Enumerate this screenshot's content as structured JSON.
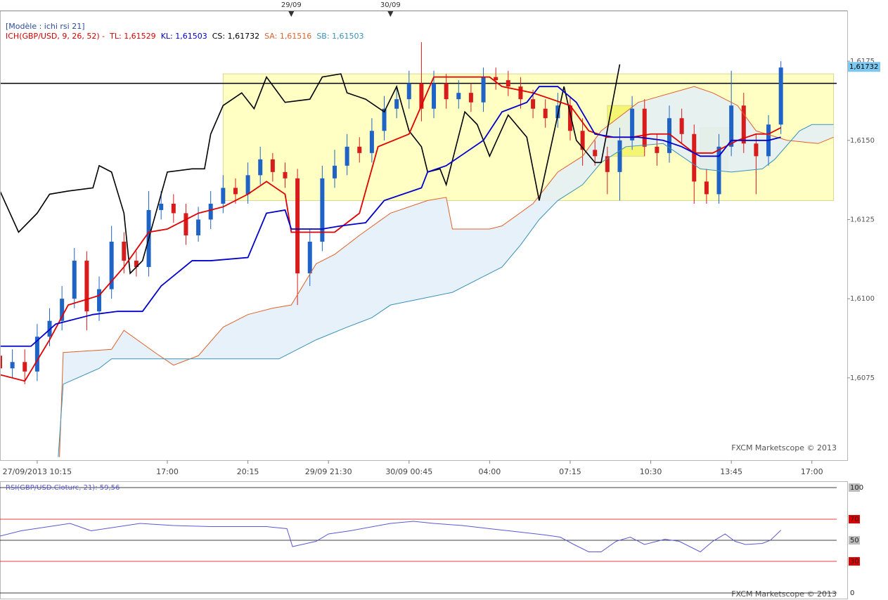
{
  "chart_data": {
    "type": "candlestick",
    "template": "[Modèle : ichi rsi 21]",
    "indicator": "ICH(GBP/USD, 9, 26, 52) -",
    "indicator_color": "#d40000",
    "watermark": "FXCM Marketscope © 2013",
    "xlim": [
      0,
      135
    ],
    "ylim": [
      1.6049,
      1.6191
    ],
    "yticks": [
      {
        "value": 1.6075,
        "label": "1,6075"
      },
      {
        "value": 1.61,
        "label": "1,6100"
      },
      {
        "value": 1.6125,
        "label": "1,6125"
      },
      {
        "value": 1.615,
        "label": "1,6150"
      },
      {
        "value": 1.6175,
        "label": "1,6175"
      }
    ],
    "xticks": [
      {
        "value": 6,
        "label": "27/09/2013 10:15"
      },
      {
        "value": 27,
        "label": "17:00"
      },
      {
        "value": 40,
        "label": "20:15"
      },
      {
        "value": 53,
        "label": "29/09 21:30"
      },
      {
        "value": 66,
        "label": "30/09 00:45"
      },
      {
        "value": 79,
        "label": "04:00"
      },
      {
        "value": 92,
        "label": "07:15"
      },
      {
        "value": 105,
        "label": "10:30"
      },
      {
        "value": 118,
        "label": "13:45"
      },
      {
        "value": 131,
        "label": "17:00"
      }
    ],
    "date_markers": [
      {
        "value": 47,
        "label": "29/09"
      },
      {
        "value": 63,
        "label": "30/09"
      }
    ],
    "last_price": {
      "value": 1.61732,
      "label": "1,61732",
      "color": "#7ec8f0"
    },
    "up_color": "#1f63c6",
    "down_color": "#d81c1c",
    "candles": {
      "x": [
        0,
        2,
        4,
        6,
        8,
        10,
        12,
        14,
        16,
        18,
        20,
        22,
        24,
        26,
        28,
        30,
        32,
        34,
        36,
        38,
        40,
        42,
        44,
        46,
        48,
        50,
        52,
        54,
        56,
        58,
        60,
        62,
        64,
        66,
        68,
        70,
        72,
        74,
        76,
        78,
        80,
        82,
        84,
        86,
        88,
        90,
        92,
        94,
        96,
        98,
        100,
        102,
        104,
        106,
        108,
        110,
        112,
        114,
        116,
        118,
        120,
        122,
        124,
        126
      ],
      "open": [
        1.6082,
        1.6078,
        1.608,
        1.6077,
        1.6088,
        1.6093,
        1.61,
        1.6112,
        1.6096,
        1.6103,
        1.6118,
        1.6112,
        1.611,
        1.6128,
        1.613,
        1.6127,
        1.612,
        1.6125,
        1.613,
        1.6135,
        1.6133,
        1.6139,
        1.6144,
        1.614,
        1.6138,
        1.6108,
        1.6118,
        1.6138,
        1.6142,
        1.6148,
        1.6146,
        1.6153,
        1.616,
        1.6163,
        1.6168,
        1.616,
        1.6168,
        1.6163,
        1.6165,
        1.6162,
        1.617,
        1.6169,
        1.6167,
        1.6163,
        1.616,
        1.6157,
        1.6161,
        1.6153,
        1.6147,
        1.6145,
        1.614,
        1.615,
        1.616,
        1.6148,
        1.6146,
        1.6157,
        1.6152,
        1.6137,
        1.6133,
        1.6148,
        1.6161,
        1.6149,
        1.6145,
        1.6155
      ],
      "high": [
        1.6086,
        1.6084,
        1.6084,
        1.6092,
        1.6097,
        1.6104,
        1.6116,
        1.6115,
        1.6107,
        1.6123,
        1.6121,
        1.6115,
        1.6134,
        1.6134,
        1.6133,
        1.613,
        1.6129,
        1.6134,
        1.6139,
        1.6138,
        1.6143,
        1.6148,
        1.6146,
        1.6143,
        1.6141,
        1.6122,
        1.6142,
        1.6147,
        1.6152,
        1.6151,
        1.6157,
        1.6164,
        1.6167,
        1.6172,
        1.6181,
        1.6172,
        1.6171,
        1.6169,
        1.6168,
        1.6173,
        1.6173,
        1.6172,
        1.617,
        1.6166,
        1.6163,
        1.6165,
        1.6164,
        1.6157,
        1.615,
        1.6148,
        1.6154,
        1.6164,
        1.6163,
        1.6152,
        1.6161,
        1.616,
        1.6155,
        1.6141,
        1.6152,
        1.6172,
        1.6165,
        1.6152,
        1.6158,
        1.6175
      ],
      "low": [
        1.6073,
        1.6075,
        1.6073,
        1.6074,
        1.6085,
        1.609,
        1.6097,
        1.609,
        1.6093,
        1.61,
        1.6108,
        1.6107,
        1.6107,
        1.6125,
        1.6124,
        1.6117,
        1.6118,
        1.6122,
        1.6127,
        1.613,
        1.613,
        1.6136,
        1.6137,
        1.6135,
        1.6098,
        1.6104,
        1.6115,
        1.6135,
        1.6139,
        1.6143,
        1.6143,
        1.615,
        1.6157,
        1.616,
        1.6156,
        1.6157,
        1.616,
        1.616,
        1.6159,
        1.6159,
        1.6166,
        1.6164,
        1.616,
        1.6157,
        1.6154,
        1.6154,
        1.615,
        1.6142,
        1.6142,
        1.6133,
        1.6131,
        1.6147,
        1.6145,
        1.6142,
        1.6143,
        1.6149,
        1.613,
        1.613,
        1.613,
        1.6145,
        1.6146,
        1.6133,
        1.6142,
        1.6152
      ],
      "close": [
        1.6078,
        1.608,
        1.6077,
        1.6088,
        1.6093,
        1.61,
        1.6112,
        1.6096,
        1.6103,
        1.6118,
        1.6112,
        1.611,
        1.6128,
        1.613,
        1.6127,
        1.612,
        1.6125,
        1.613,
        1.6135,
        1.6133,
        1.6139,
        1.6144,
        1.614,
        1.6138,
        1.6108,
        1.6118,
        1.6138,
        1.6142,
        1.6148,
        1.6146,
        1.6153,
        1.616,
        1.6163,
        1.6168,
        1.616,
        1.6168,
        1.6163,
        1.6165,
        1.6162,
        1.617,
        1.6169,
        1.6167,
        1.6163,
        1.616,
        1.6157,
        1.6161,
        1.6153,
        1.6147,
        1.6145,
        1.614,
        1.615,
        1.616,
        1.6148,
        1.6146,
        1.6157,
        1.6152,
        1.6137,
        1.6133,
        1.6148,
        1.6161,
        1.6149,
        1.6145,
        1.6155,
        1.6173
      ]
    },
    "cloud_color": "#e3eef8",
    "rectangles": [
      {
        "x": [
          36,
          134.5
        ],
        "y": [
          1.6131,
          1.6171
        ],
        "color": "#ffffb0"
      },
      {
        "x": [
          98,
          104
        ],
        "y": [
          1.6145,
          1.6161
        ],
        "color": "#f2f25a"
      },
      {
        "x": [
          113,
          117.5
        ],
        "y": [
          1.6141,
          1.6154
        ],
        "color": "#eeee88"
      }
    ],
    "hlines": [
      {
        "value": 1.6168,
        "color": "#000000"
      }
    ],
    "series": [
      {
        "name": "SA: 1,61516",
        "color": "#e0622a",
        "width": 1,
        "x": [
          9.6,
          10.2,
          18,
          20,
          25,
          28,
          32,
          36,
          40,
          44,
          47,
          51,
          54,
          58,
          63,
          69,
          72,
          73,
          79,
          81,
          86,
          90,
          94,
          97,
          99,
          103,
          112,
          115,
          119,
          122,
          127,
          132,
          134.5
        ],
        "values": [
          1.605,
          1.6083,
          1.6084,
          1.609,
          1.6083,
          1.6079,
          1.6082,
          1.6091,
          1.6095,
          1.6097,
          1.6098,
          1.6111,
          1.6114,
          1.612,
          1.6127,
          1.6131,
          1.6132,
          1.6122,
          1.6122,
          1.6123,
          1.613,
          1.614,
          1.6145,
          1.6153,
          1.6156,
          1.6162,
          1.6167,
          1.6165,
          1.6161,
          1.6153,
          1.615,
          1.6149,
          1.6151
        ]
      },
      {
        "name": "SB: 1,61503",
        "color": "#3a92b8",
        "width": 1,
        "x": [
          9.4,
          10.2,
          16,
          18,
          45,
          47,
          51,
          56,
          60,
          63,
          68,
          73,
          77,
          81,
          84,
          87,
          90,
          94,
          97,
          101,
          107,
          113,
          118,
          123,
          125,
          129,
          131,
          134.5
        ],
        "values": [
          1.605,
          1.6073,
          1.6078,
          1.6081,
          1.6081,
          1.6083,
          1.6087,
          1.6091,
          1.6094,
          1.6098,
          1.61,
          1.6102,
          1.6106,
          1.611,
          1.6117,
          1.6125,
          1.6131,
          1.6136,
          1.6143,
          1.6148,
          1.6149,
          1.6141,
          1.614,
          1.6141,
          1.6144,
          1.6153,
          1.6155,
          1.6155
        ]
      },
      {
        "name": "CS: 1,61732",
        "color": "#000000",
        "width": 1.6,
        "x": [
          0,
          3,
          6,
          8,
          11,
          15,
          16,
          18,
          20,
          21,
          23,
          27,
          31,
          33,
          34,
          36,
          39,
          41,
          43,
          46,
          50,
          52,
          55,
          56,
          59,
          62,
          64,
          66,
          68,
          69,
          71,
          72,
          75,
          77,
          79,
          82,
          85,
          87,
          89,
          91,
          93,
          96,
          97,
          100
        ],
        "values": [
          1.6134,
          1.6121,
          1.6127,
          1.6133,
          1.6134,
          1.6135,
          1.6142,
          1.614,
          1.6127,
          1.6108,
          1.6112,
          1.614,
          1.6141,
          1.6141,
          1.6152,
          1.6161,
          1.6165,
          1.616,
          1.617,
          1.6162,
          1.6163,
          1.617,
          1.6171,
          1.6165,
          1.6163,
          1.6159,
          1.6167,
          1.6153,
          1.6148,
          1.614,
          1.6141,
          1.6136,
          1.6159,
          1.6155,
          1.6145,
          1.6158,
          1.6151,
          1.6131,
          1.6149,
          1.6167,
          1.615,
          1.6143,
          1.6143,
          1.6174
        ]
      },
      {
        "name": "TL: 1,61529",
        "color": "#e00000",
        "width": 1.8,
        "x": [
          0,
          4,
          8,
          11,
          16,
          20,
          24,
          27,
          32,
          36,
          40,
          43,
          46,
          47,
          51,
          54,
          58,
          61,
          66,
          68,
          70,
          75,
          79,
          81,
          86,
          89,
          92,
          95,
          98,
          102,
          105,
          108,
          112,
          115,
          119,
          122,
          124,
          126
        ],
        "values": [
          1.6076,
          1.6074,
          1.6087,
          1.6098,
          1.6101,
          1.611,
          1.6121,
          1.6122,
          1.6127,
          1.6129,
          1.6133,
          1.6137,
          1.6133,
          1.6121,
          1.6121,
          1.6121,
          1.6127,
          1.6148,
          1.6152,
          1.6161,
          1.617,
          1.617,
          1.617,
          1.6167,
          1.6165,
          1.6163,
          1.6161,
          1.6153,
          1.6151,
          1.6151,
          1.6152,
          1.6152,
          1.6146,
          1.6146,
          1.615,
          1.6152,
          1.6152,
          1.6154
        ]
      },
      {
        "name": "KL: 1,61503",
        "color": "#0000cc",
        "width": 1.8,
        "x": [
          0,
          5,
          9,
          15,
          19,
          23,
          26,
          31,
          34,
          40,
          43,
          46,
          47,
          52,
          55,
          59,
          62,
          68,
          69,
          72,
          75,
          78,
          81,
          85,
          87,
          90,
          93,
          96,
          99,
          103,
          107,
          110,
          113,
          116,
          118,
          124,
          126
        ],
        "values": [
          1.6085,
          1.6085,
          1.6092,
          1.6095,
          1.6096,
          1.6096,
          1.6104,
          1.6112,
          1.6112,
          1.6113,
          1.6127,
          1.6128,
          1.6122,
          1.6122,
          1.6123,
          1.6124,
          1.6131,
          1.6135,
          1.614,
          1.6142,
          1.6146,
          1.615,
          1.6159,
          1.6162,
          1.6167,
          1.6167,
          1.6162,
          1.6152,
          1.6151,
          1.6151,
          1.615,
          1.6148,
          1.6145,
          1.6145,
          1.615,
          1.615,
          1.6151
        ]
      }
    ],
    "legend_order": [
      3,
      4,
      2,
      0,
      1
    ],
    "rsi": {
      "type": "line",
      "title": "RSI(GBP/USD.Cloturc, 21): 59,56",
      "color": "#5a5ad0",
      "ylim": [
        0,
        100
      ],
      "yticks": [
        0,
        30,
        50,
        70,
        100
      ],
      "tick_colors": [
        "#ffffff",
        "#e00000",
        "#bdbdbd",
        "#e00000",
        "#bdbdbd"
      ],
      "line_colors": [
        "#000000",
        "#e00000",
        "#000000",
        "#e00000",
        "#000000"
      ],
      "x": [
        0,
        3.4,
        11.3,
        14.7,
        22.6,
        28,
        34,
        43,
        46.3,
        47.2,
        51,
        53,
        56.5,
        63,
        66.7,
        70,
        74.6,
        79,
        83.6,
        88,
        90.4,
        92.6,
        95,
        97,
        99.4,
        101.7,
        104,
        107.3,
        109.6,
        113,
        115,
        117,
        118.6,
        120.3,
        123,
        124.3,
        126
      ],
      "values": [
        54,
        59,
        66,
        59,
        66,
        64,
        63,
        63,
        61,
        44,
        49,
        56,
        59,
        66,
        68,
        66,
        64,
        61,
        58,
        55,
        53,
        46,
        39,
        39,
        49,
        53,
        46,
        51,
        49,
        39,
        49,
        56,
        49,
        46,
        47,
        50,
        59.56
      ]
    }
  }
}
